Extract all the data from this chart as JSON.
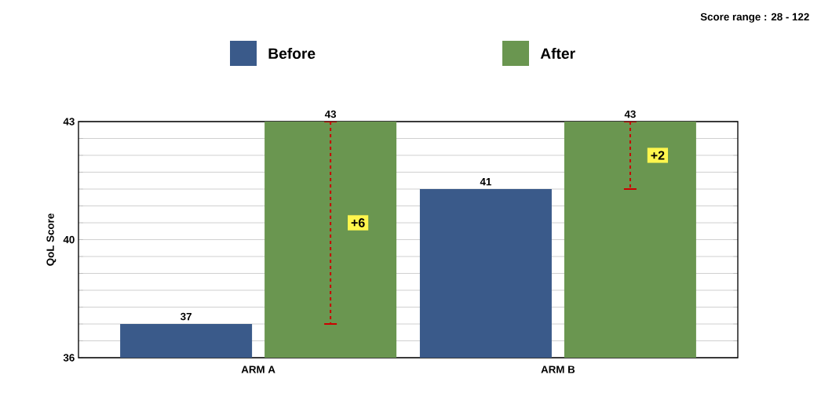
{
  "chart_data": {
    "type": "bar",
    "categories": [
      "ARM A",
      "ARM B"
    ],
    "series": [
      {
        "name": "Before",
        "color": "#3a5a8a",
        "values": [
          37,
          41
        ]
      },
      {
        "name": "After",
        "color": "#6a9650",
        "values": [
          43,
          43
        ],
        "errors": [
          [
            37,
            43
          ],
          [
            41,
            43
          ]
        ]
      }
    ],
    "ylabel": "QoL Score",
    "ylim": [
      36,
      43
    ],
    "yticks": [
      36,
      {
        "value": 36.5,
        "label": null
      },
      {
        "value": 37,
        "label": null
      },
      {
        "value": 37.5,
        "label": null
      },
      {
        "value": 38,
        "label": null
      },
      {
        "value": 38.5,
        "label": null
      },
      {
        "value": 39,
        "label": null
      },
      {
        "value": 39.5,
        "label": "40"
      },
      {
        "value": 40,
        "label": null
      },
      {
        "value": 40.5,
        "label": null
      },
      {
        "value": 41,
        "label": null
      },
      {
        "value": 41.5,
        "label": null
      },
      {
        "value": 42,
        "label": null
      },
      {
        "value": 42.5,
        "label": null
      },
      43
    ],
    "grid": "y",
    "legend": "top",
    "data_labels": true,
    "annotations": [
      "Score range : 28 - 122",
      "+6",
      "+2"
    ]
  }
}
